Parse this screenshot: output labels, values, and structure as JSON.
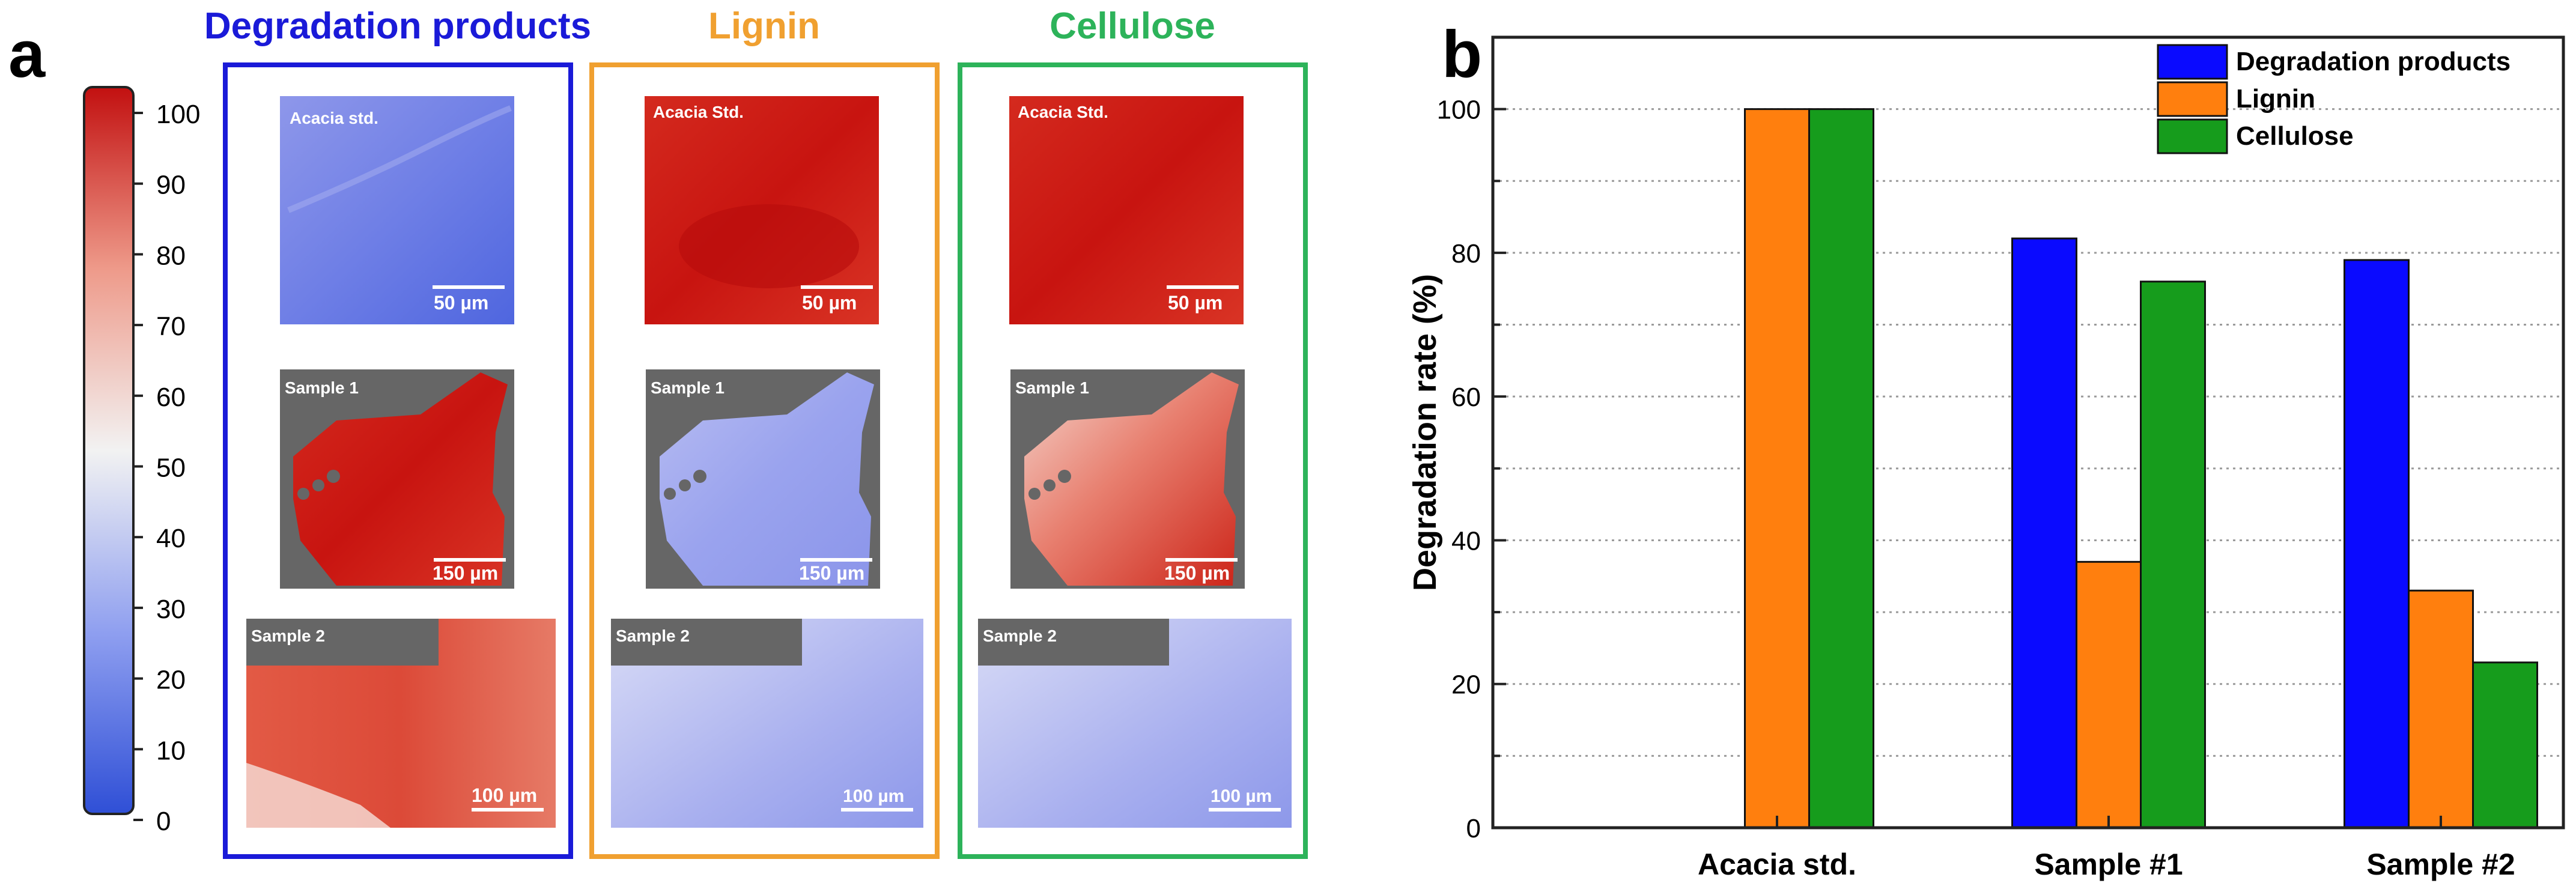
{
  "panel_labels": {
    "a": "a",
    "b": "b"
  },
  "colors": {
    "degradation": "#0a0aff",
    "lignin": "#ff7f0e",
    "cellulose": "#169c1c",
    "box_degradation": "#1a1ad8",
    "box_lignin": "#f0a030",
    "box_cellulose": "#2db35a",
    "map_red": "#c81010",
    "map_blue": "#7b86e6",
    "dark_bg": "#666666"
  },
  "colorbar": {
    "ticks": [
      "0",
      "10",
      "20",
      "30",
      "40",
      "50",
      "60",
      "70",
      "80",
      "90",
      "100"
    ]
  },
  "columns": [
    {
      "title": "Degradation products",
      "tiles": [
        {
          "label": "Acacia std.",
          "scale": "50 µm",
          "style": "blue"
        },
        {
          "label": "Sample 1",
          "scale": "150 µm",
          "style": "red-shape"
        },
        {
          "label": "Sample 2",
          "scale": "100 µm",
          "style": "red"
        }
      ]
    },
    {
      "title": "Lignin",
      "tiles": [
        {
          "label": "Acacia Std.",
          "scale": "50 µm",
          "style": "red"
        },
        {
          "label": "Sample 1",
          "scale": "150 µm",
          "style": "blue-shape"
        },
        {
          "label": "Sample 2",
          "scale": "100 µm",
          "style": "blue"
        }
      ]
    },
    {
      "title": "Cellulose",
      "tiles": [
        {
          "label": "Acacia Std.",
          "scale": "50 µm",
          "style": "red"
        },
        {
          "label": "Sample 1",
          "scale": "150 µm",
          "style": "mixed-shape"
        },
        {
          "label": "Sample 2",
          "scale": "100 µm",
          "style": "blue"
        }
      ]
    }
  ],
  "chart_data": {
    "type": "bar",
    "categories": [
      "Acacia std.",
      "Sample #1",
      "Sample #2"
    ],
    "series": [
      {
        "name": "Degradation products",
        "values": [
          0,
          82,
          79
        ]
      },
      {
        "name": "Lignin",
        "values": [
          100,
          37,
          33
        ]
      },
      {
        "name": "Cellulose",
        "values": [
          100,
          76,
          23
        ]
      }
    ],
    "title": "",
    "xlabel": "",
    "ylabel": "Degradation rate (%)",
    "ylim": [
      0,
      110
    ],
    "yticks": [
      "0",
      "20",
      "40",
      "60",
      "80",
      "100"
    ],
    "grid": true,
    "legend": "top-right"
  }
}
